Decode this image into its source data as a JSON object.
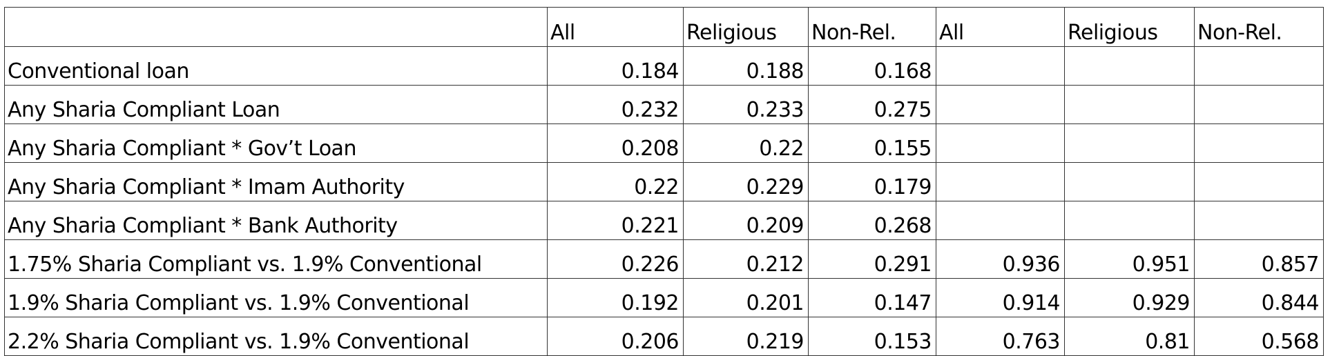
{
  "table": {
    "columns": [
      "All",
      "Religious",
      "Non-Rel.",
      "All",
      "Religious",
      "Non-Rel."
    ],
    "rows": [
      {
        "label": "Conventional loan",
        "values": [
          0.184,
          0.188,
          0.168,
          null,
          null,
          null
        ]
      },
      {
        "label": "Any Sharia Compliant Loan",
        "values": [
          0.232,
          0.233,
          0.275,
          null,
          null,
          null
        ]
      },
      {
        "label": "Any Sharia Compliant * Gov’t Loan",
        "values": [
          0.208,
          0.22,
          0.155,
          null,
          null,
          null
        ]
      },
      {
        "label": "Any Sharia Compliant * Imam Authority",
        "values": [
          0.22,
          0.229,
          0.179,
          null,
          null,
          null
        ]
      },
      {
        "label": "Any Sharia Compliant * Bank Authority",
        "values": [
          0.221,
          0.209,
          0.268,
          null,
          null,
          null
        ]
      },
      {
        "label": "1.75% Sharia Compliant vs. 1.9% Conventional",
        "values": [
          0.226,
          0.212,
          0.291,
          0.936,
          0.951,
          0.857
        ]
      },
      {
        "label": "1.9% Sharia Compliant vs. 1.9% Conventional",
        "values": [
          0.192,
          0.201,
          0.147,
          0.914,
          0.929,
          0.844
        ]
      },
      {
        "label": "2.2% Sharia Compliant vs. 1.9% Conventional",
        "values": [
          0.206,
          0.219,
          0.153,
          0.763,
          0.81,
          0.568
        ]
      }
    ]
  }
}
